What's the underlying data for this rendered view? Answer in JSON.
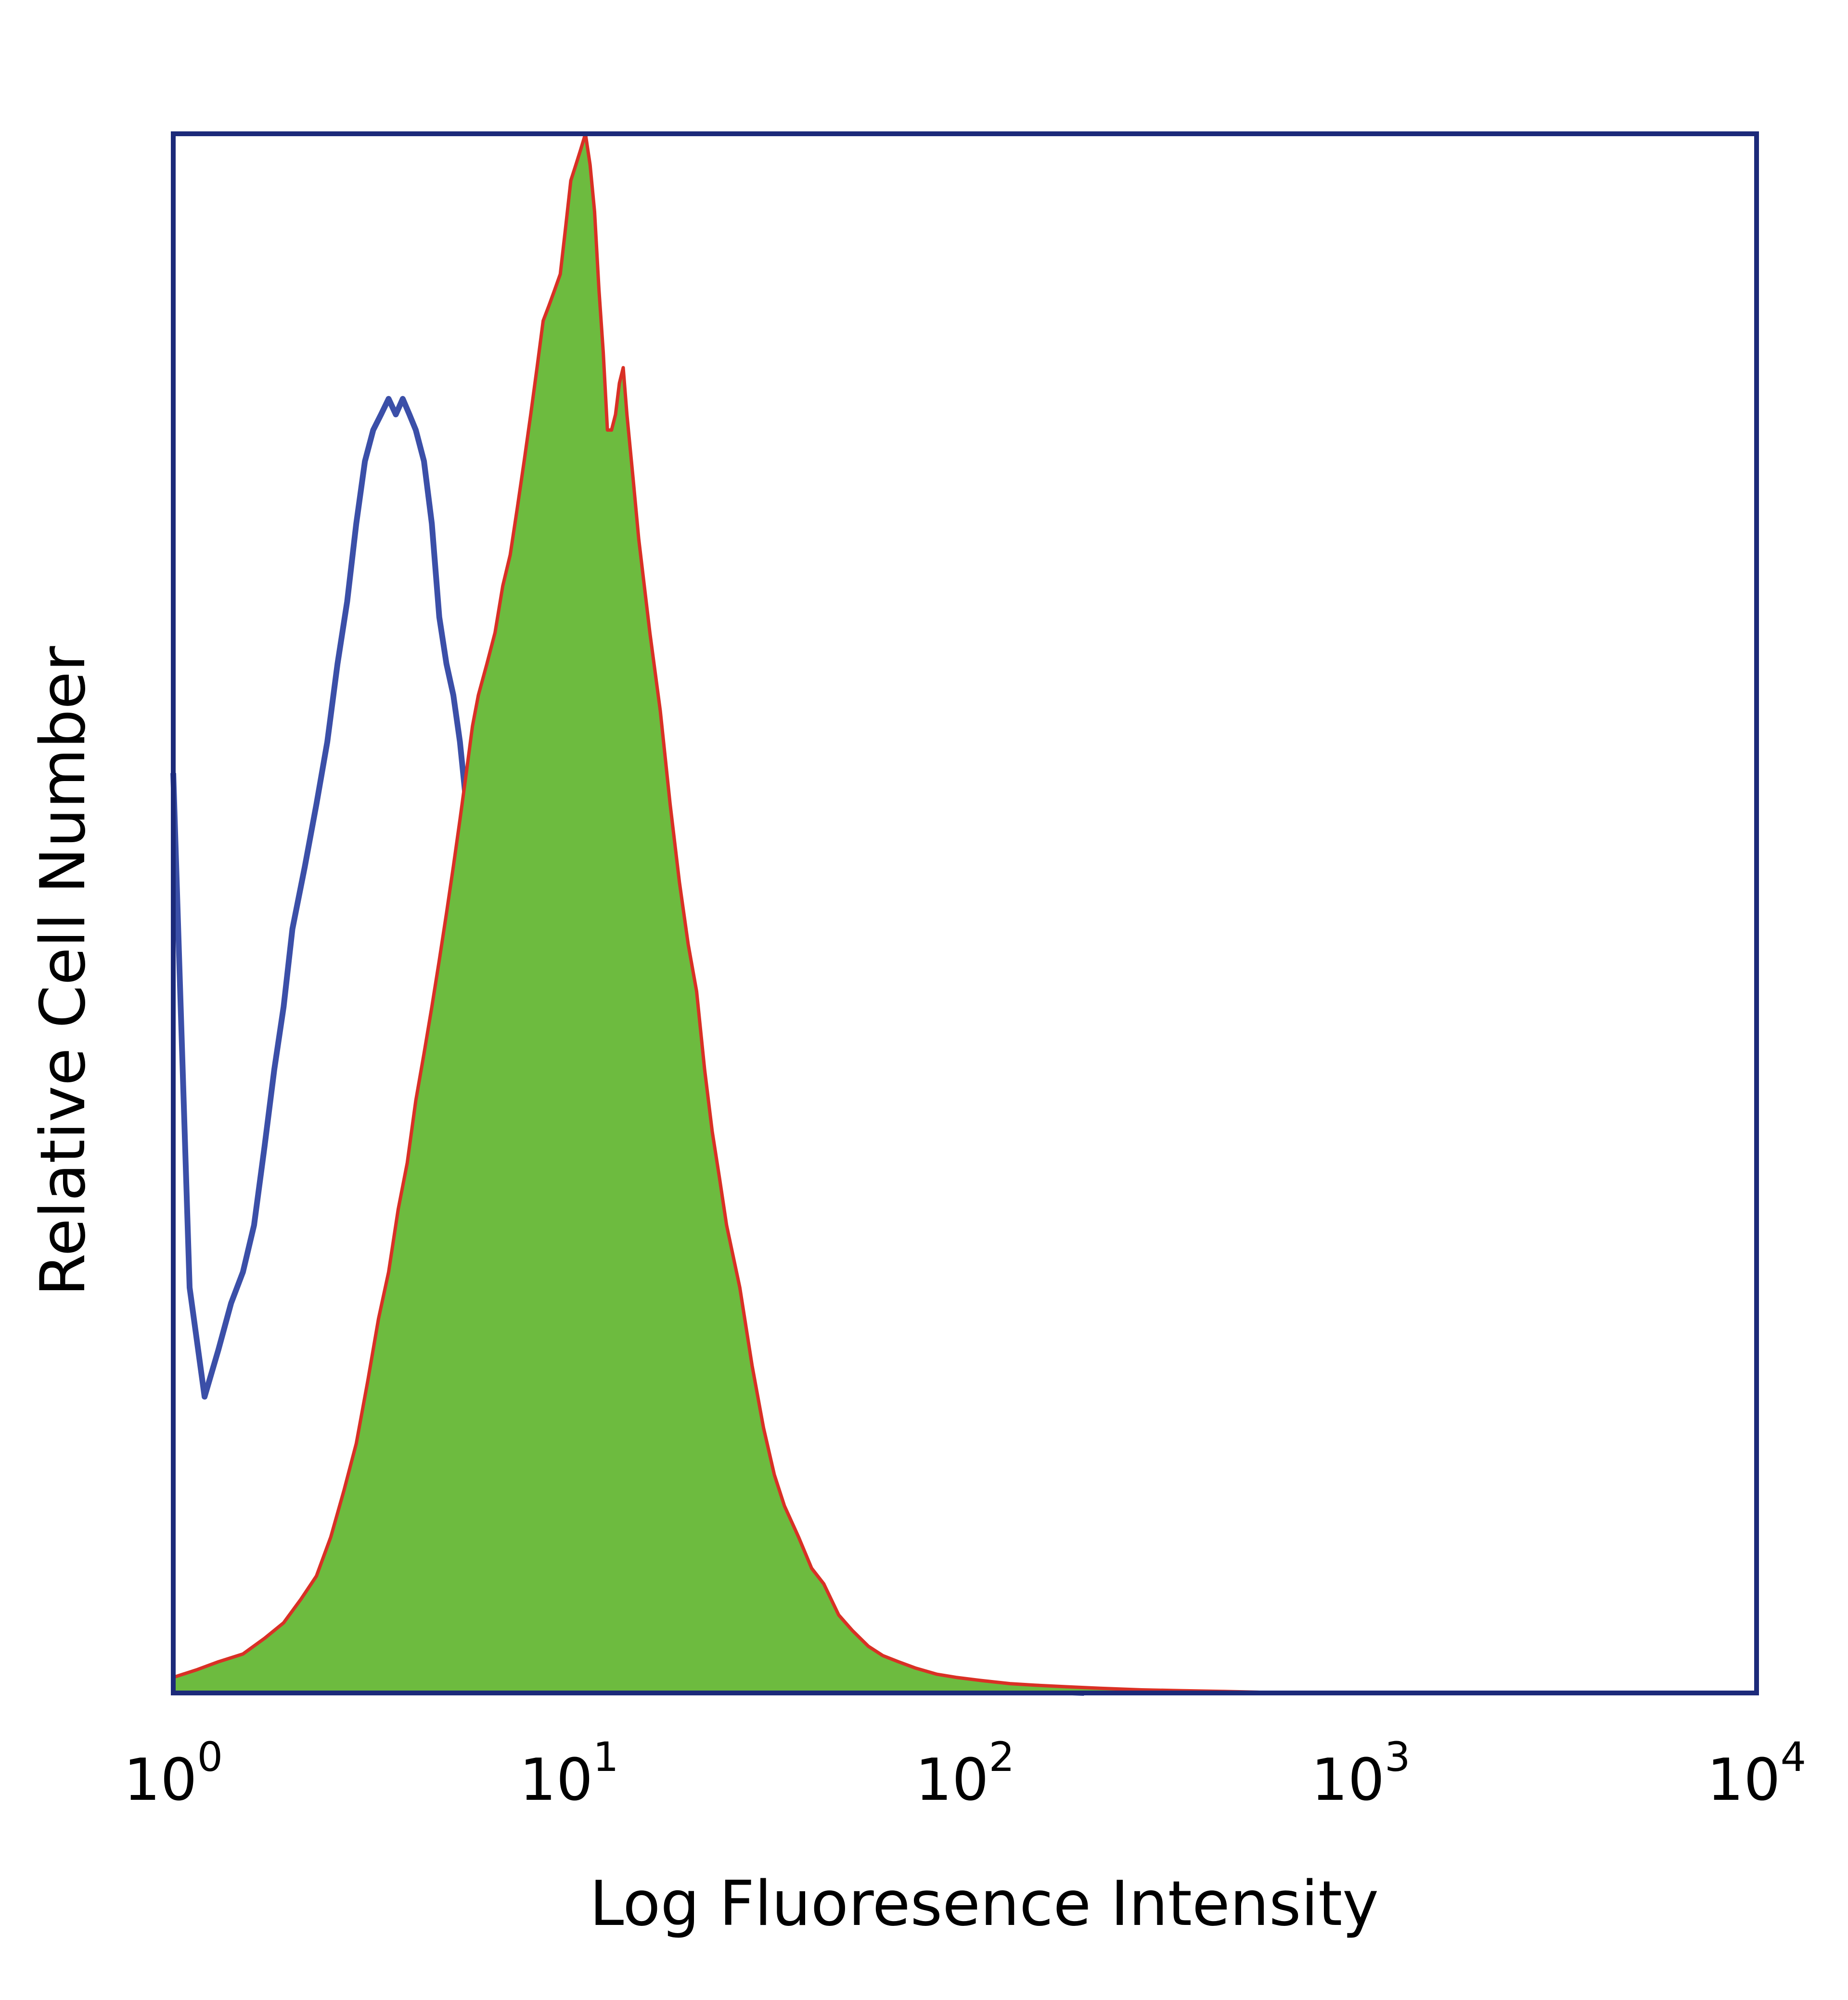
{
  "chart_data": {
    "type": "area",
    "title": "",
    "xlabel": "Log Fluoresence Intensity",
    "ylabel": "Relative Cell Number",
    "x_scale": "log",
    "xlim": [
      1,
      10000
    ],
    "ylim": [
      0,
      100
    ],
    "grid": false,
    "legend": "none",
    "x_ticks": [
      {
        "base": "10",
        "exp": "0"
      },
      {
        "base": "10",
        "exp": "1"
      },
      {
        "base": "10",
        "exp": "2"
      },
      {
        "base": "10",
        "exp": "3"
      },
      {
        "base": "10",
        "exp": "4"
      }
    ],
    "series": [
      {
        "color": "#3b4fa8",
        "fill": "none",
        "points": [
          [
            1.0,
            59
          ],
          [
            1.1,
            26
          ],
          [
            1.2,
            19
          ],
          [
            1.3,
            22
          ],
          [
            1.4,
            25
          ],
          [
            1.5,
            27
          ],
          [
            1.6,
            30
          ],
          [
            1.7,
            35
          ],
          [
            1.8,
            40
          ],
          [
            1.9,
            44
          ],
          [
            2.0,
            49
          ],
          [
            2.15,
            53
          ],
          [
            2.3,
            57
          ],
          [
            2.45,
            61
          ],
          [
            2.6,
            66
          ],
          [
            2.75,
            70
          ],
          [
            2.9,
            75
          ],
          [
            3.05,
            79
          ],
          [
            3.2,
            81
          ],
          [
            3.35,
            82
          ],
          [
            3.5,
            83
          ],
          [
            3.65,
            82
          ],
          [
            3.8,
            83
          ],
          [
            3.95,
            82
          ],
          [
            4.1,
            81
          ],
          [
            4.3,
            79
          ],
          [
            4.5,
            75
          ],
          [
            4.7,
            69
          ],
          [
            4.9,
            66
          ],
          [
            5.1,
            64
          ],
          [
            5.3,
            61
          ],
          [
            5.5,
            57
          ],
          [
            5.7,
            52
          ],
          [
            5.9,
            47
          ],
          [
            6.2,
            43
          ],
          [
            6.5,
            40
          ],
          [
            6.8,
            37
          ],
          [
            7.1,
            32
          ],
          [
            7.5,
            26
          ],
          [
            7.9,
            21
          ],
          [
            8.3,
            17
          ],
          [
            8.7,
            15
          ],
          [
            9.2,
            13
          ],
          [
            9.7,
            11
          ],
          [
            10.3,
            9
          ],
          [
            10.9,
            7
          ],
          [
            11.6,
            5
          ],
          [
            12.3,
            4
          ],
          [
            13,
            3
          ],
          [
            14,
            2.6
          ],
          [
            15,
            2.4
          ],
          [
            16.5,
            2.2
          ],
          [
            18,
            2
          ],
          [
            20,
            1.8
          ],
          [
            23,
            1.5
          ],
          [
            26,
            1.3
          ],
          [
            30,
            1.1
          ],
          [
            35,
            1
          ],
          [
            40,
            0.9
          ],
          [
            50,
            0.7
          ],
          [
            60,
            0.6
          ],
          [
            75,
            0.5
          ],
          [
            90,
            0.4
          ],
          [
            110,
            0.3
          ],
          [
            130,
            0.2
          ],
          [
            160,
            0.1
          ],
          [
            200,
            0
          ]
        ]
      },
      {
        "color": "#d93025",
        "fill": "#6dbb3f",
        "points": [
          [
            1.0,
            1
          ],
          [
            1.15,
            1.5
          ],
          [
            1.3,
            2
          ],
          [
            1.5,
            2.5
          ],
          [
            1.7,
            3.5
          ],
          [
            1.9,
            4.5
          ],
          [
            2.1,
            6
          ],
          [
            2.3,
            7.5
          ],
          [
            2.5,
            10
          ],
          [
            2.7,
            13
          ],
          [
            2.9,
            16
          ],
          [
            3.1,
            20
          ],
          [
            3.3,
            24
          ],
          [
            3.5,
            27
          ],
          [
            3.7,
            31
          ],
          [
            3.9,
            34
          ],
          [
            4.1,
            38
          ],
          [
            4.3,
            41
          ],
          [
            4.5,
            44
          ],
          [
            4.7,
            47
          ],
          [
            4.9,
            50
          ],
          [
            5.1,
            53
          ],
          [
            5.3,
            56
          ],
          [
            5.5,
            59
          ],
          [
            5.7,
            62
          ],
          [
            5.9,
            64
          ],
          [
            6.2,
            66
          ],
          [
            6.5,
            68
          ],
          [
            6.8,
            71
          ],
          [
            7.1,
            73
          ],
          [
            7.4,
            76
          ],
          [
            7.7,
            79
          ],
          [
            8.0,
            82
          ],
          [
            8.3,
            85
          ],
          [
            8.6,
            88
          ],
          [
            8.9,
            89
          ],
          [
            9.2,
            90
          ],
          [
            9.5,
            91
          ],
          [
            9.8,
            94
          ],
          [
            10.1,
            97
          ],
          [
            10.4,
            98
          ],
          [
            10.7,
            99
          ],
          [
            11.0,
            100
          ],
          [
            11.3,
            98
          ],
          [
            11.6,
            95
          ],
          [
            11.9,
            90
          ],
          [
            12.2,
            86
          ],
          [
            12.5,
            81
          ],
          [
            12.8,
            81
          ],
          [
            13.1,
            82
          ],
          [
            13.4,
            84
          ],
          [
            13.7,
            85
          ],
          [
            14.0,
            82
          ],
          [
            14.5,
            78
          ],
          [
            15,
            74
          ],
          [
            16,
            68
          ],
          [
            17,
            63
          ],
          [
            18,
            57
          ],
          [
            19,
            52
          ],
          [
            20,
            48
          ],
          [
            21,
            45
          ],
          [
            22,
            40
          ],
          [
            23,
            36
          ],
          [
            24,
            33
          ],
          [
            25,
            30
          ],
          [
            27,
            26
          ],
          [
            29,
            21
          ],
          [
            31,
            17
          ],
          [
            33,
            14
          ],
          [
            35,
            12
          ],
          [
            38,
            10
          ],
          [
            41,
            8
          ],
          [
            44,
            7
          ],
          [
            48,
            5
          ],
          [
            52,
            4
          ],
          [
            57,
            3
          ],
          [
            62,
            2.4
          ],
          [
            68,
            2
          ],
          [
            75,
            1.6
          ],
          [
            85,
            1.2
          ],
          [
            95,
            1
          ],
          [
            110,
            0.8
          ],
          [
            130,
            0.6
          ],
          [
            150,
            0.5
          ],
          [
            180,
            0.4
          ],
          [
            220,
            0.3
          ],
          [
            280,
            0.2
          ],
          [
            350,
            0.15
          ],
          [
            450,
            0.1
          ],
          [
            550,
            0.05
          ],
          [
            600,
            0
          ]
        ]
      }
    ]
  }
}
